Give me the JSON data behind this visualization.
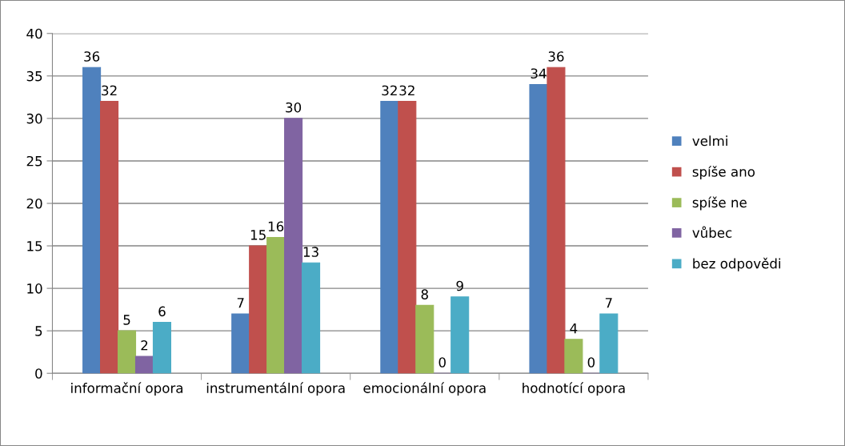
{
  "chart_data": {
    "type": "bar",
    "categories": [
      "informační opora",
      "instrumentální opora",
      "emocionální opora",
      "hodnotící opora"
    ],
    "series": [
      {
        "name": "velmi",
        "color": "#4f81bd",
        "values": [
          36,
          7,
          32,
          34
        ]
      },
      {
        "name": "spíše ano",
        "color": "#c0504d",
        "values": [
          32,
          15,
          32,
          36
        ]
      },
      {
        "name": "spíše ne",
        "color": "#9bbb59",
        "values": [
          5,
          16,
          8,
          4
        ]
      },
      {
        "name": "vůbec",
        "color": "#8064a2",
        "values": [
          2,
          30,
          0,
          0
        ]
      },
      {
        "name": "bez odpovědi",
        "color": "#4bacc6",
        "values": [
          6,
          13,
          9,
          7
        ]
      }
    ],
    "ylim": [
      0,
      40
    ],
    "yticks": [
      0,
      5,
      10,
      15,
      20,
      25,
      30,
      35,
      40
    ],
    "grid": "y",
    "legend": "right",
    "data_labels": true
  }
}
